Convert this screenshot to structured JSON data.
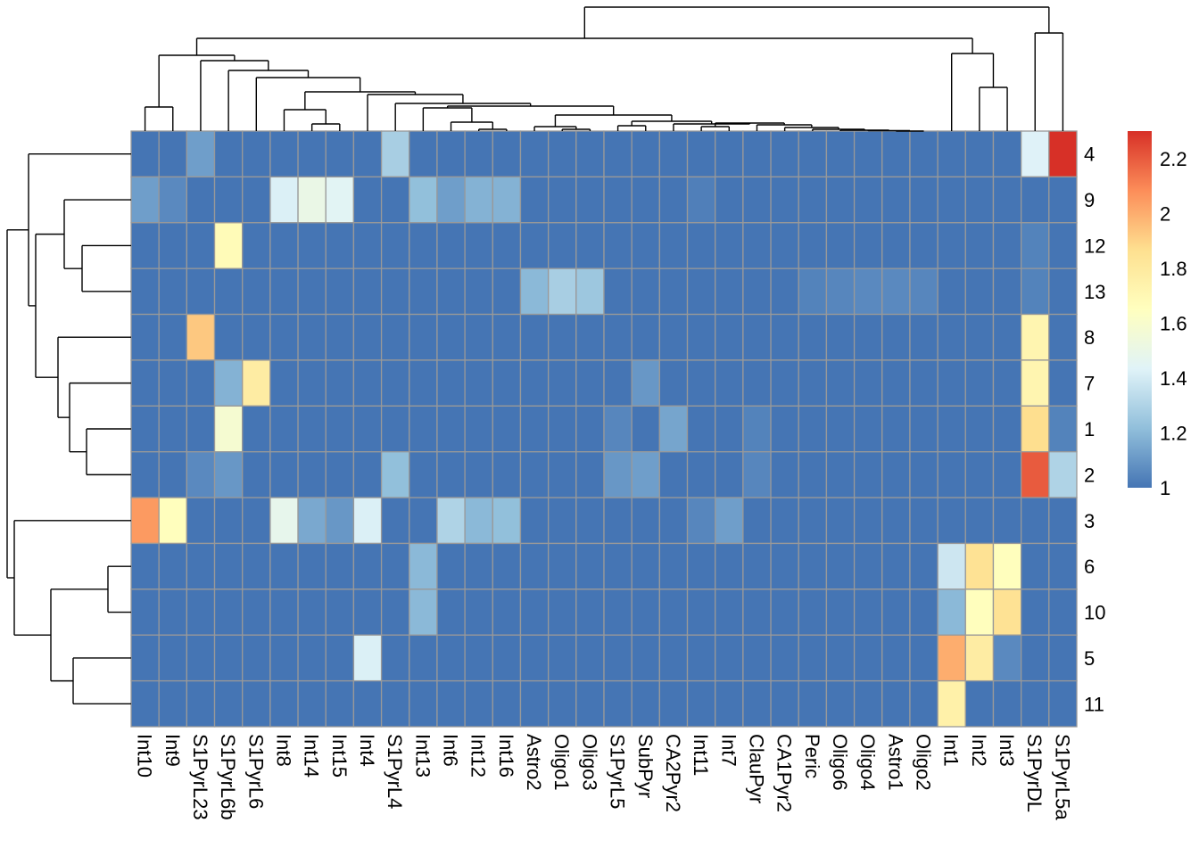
{
  "chart_data": {
    "type": "heatmap",
    "title": "",
    "columns": [
      "Int10",
      "Int9",
      "S1PyrL23",
      "S1PyrL6b",
      "S1PyrL6",
      "Int8",
      "Int14",
      "Int15",
      "Int4",
      "S1PyrL4",
      "Int13",
      "Int6",
      "Int12",
      "Int16",
      "Astro2",
      "Oligo1",
      "Oligo3",
      "S1PyrL5",
      "SubPyr",
      "CA2Pyr2",
      "Int11",
      "Int7",
      "ClauPyr",
      "CA1Pyr2",
      "Peric",
      "Oligo6",
      "Oligo4",
      "Astro1",
      "Oligo2",
      "Int1",
      "Int2",
      "Int3",
      "S1PyrDL",
      "S1PyrL5a"
    ],
    "rows": [
      "4",
      "9",
      "12",
      "13",
      "8",
      "7",
      "1",
      "2",
      "3",
      "6",
      "10",
      "5",
      "11"
    ],
    "default_value": 1.0,
    "nonbaseline_values": {
      "4": {
        "S1PyrL23": 1.12,
        "S1PyrL4": 1.28,
        "S1PyrDL": 1.43,
        "S1PyrL5a": 2.3
      },
      "9": {
        "Int10": 1.12,
        "Int9": 1.06,
        "Int8": 1.42,
        "Int14": 1.5,
        "Int15": 1.45,
        "Int13": 1.22,
        "Int6": 1.12,
        "Int12": 1.18,
        "Int16": 1.18,
        "Int11": 1.03
      },
      "12": {
        "S1PyrL6b": 1.68,
        "S1PyrDL": 1.04
      },
      "13": {
        "Astro2": 1.2,
        "Oligo1": 1.28,
        "Oligo3": 1.25,
        "Peric": 1.04,
        "Oligo6": 1.05,
        "Oligo4": 1.06,
        "Astro1": 1.06,
        "Oligo2": 1.05,
        "S1PyrDL": 1.04
      },
      "8": {
        "S1PyrL23": 1.93,
        "S1PyrDL": 1.72
      },
      "7": {
        "S1PyrL6b": 1.18,
        "S1PyrL6": 1.78,
        "SubPyr": 1.1,
        "S1PyrDL": 1.72
      },
      "1": {
        "S1PyrL6b": 1.58,
        "S1PyrL5": 1.05,
        "CA2Pyr2": 1.14,
        "ClauPyr": 1.04,
        "S1PyrDL": 1.87,
        "S1PyrL5a": 1.04
      },
      "2": {
        "S1PyrL23": 1.06,
        "S1PyrL6b": 1.1,
        "S1PyrL4": 1.22,
        "S1PyrL5": 1.1,
        "SubPyr": 1.12,
        "ClauPyr": 1.05,
        "S1PyrDL": 2.2,
        "S1PyrL5a": 1.3
      },
      "3": {
        "Int10": 2.05,
        "Int9": 1.66,
        "Int8": 1.48,
        "Int14": 1.15,
        "Int15": 1.1,
        "Int4": 1.42,
        "Int6": 1.3,
        "Int12": 1.2,
        "Int16": 1.22,
        "Int11": 1.05,
        "Int7": 1.12
      },
      "6": {
        "Int13": 1.2,
        "Int1": 1.38,
        "Int2": 1.85,
        "Int3": 1.66
      },
      "10": {
        "Int13": 1.2,
        "Int1": 1.2,
        "Int2": 1.66,
        "Int3": 1.85
      },
      "5": {
        "Int4": 1.42,
        "Int1": 2.0,
        "Int2": 1.78,
        "Int3": 1.06
      },
      "11": {
        "Int1": 1.75
      }
    },
    "color_scale": {
      "range": [
        1.0,
        2.3
      ],
      "colors": [
        "#4575B4",
        "#91BFDB",
        "#E0F3F8",
        "#FFFFBF",
        "#FEE090",
        "#FC8D59",
        "#D73027"
      ],
      "legend_ticks": [
        "1",
        "1.2",
        "1.4",
        "1.6",
        "1.8",
        "2",
        "2.2"
      ],
      "legend_placement": "right"
    },
    "cell_border_color": "#999999",
    "row_dendrogram": true,
    "column_dendrogram": true
  }
}
